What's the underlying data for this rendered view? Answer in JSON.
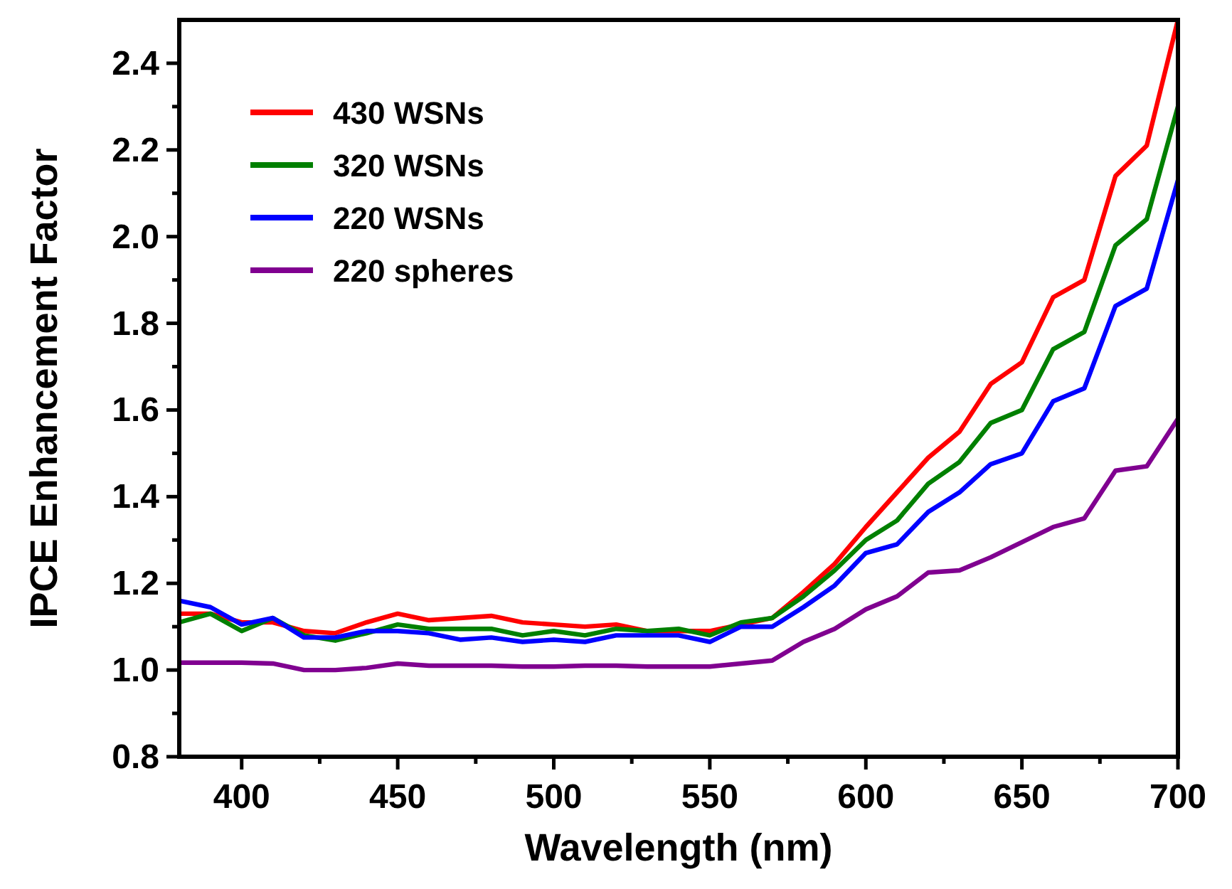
{
  "chart_data": {
    "type": "line",
    "xlabel": "Wavelength (nm)",
    "ylabel": "IPCE Enhancement Factor",
    "x": [
      380,
      390,
      400,
      410,
      420,
      430,
      440,
      450,
      460,
      470,
      480,
      490,
      500,
      510,
      520,
      530,
      540,
      550,
      560,
      570,
      580,
      590,
      600,
      610,
      620,
      630,
      640,
      650,
      660,
      670,
      680,
      690,
      700
    ],
    "series": [
      {
        "name": "430 WSNs",
        "color": "#ff0000",
        "values": [
          1.13,
          1.13,
          1.11,
          1.11,
          1.09,
          1.085,
          1.11,
          1.13,
          1.115,
          1.12,
          1.125,
          1.11,
          1.105,
          1.1,
          1.105,
          1.09,
          1.09,
          1.09,
          1.105,
          1.12,
          1.18,
          1.245,
          1.33,
          1.41,
          1.49,
          1.55,
          1.66,
          1.71,
          1.86,
          1.9,
          2.14,
          2.21,
          2.5
        ]
      },
      {
        "name": "320 WSNs",
        "color": "#008000",
        "values": [
          1.11,
          1.13,
          1.09,
          1.12,
          1.08,
          1.068,
          1.085,
          1.105,
          1.095,
          1.095,
          1.095,
          1.08,
          1.09,
          1.08,
          1.095,
          1.09,
          1.095,
          1.08,
          1.11,
          1.12,
          1.17,
          1.23,
          1.3,
          1.345,
          1.43,
          1.48,
          1.57,
          1.6,
          1.74,
          1.78,
          1.98,
          2.04,
          2.3
        ]
      },
      {
        "name": "220 WSNs",
        "color": "#0000ff",
        "values": [
          1.16,
          1.145,
          1.105,
          1.12,
          1.075,
          1.075,
          1.09,
          1.09,
          1.085,
          1.07,
          1.075,
          1.065,
          1.07,
          1.065,
          1.08,
          1.08,
          1.08,
          1.065,
          1.1,
          1.1,
          1.145,
          1.195,
          1.27,
          1.29,
          1.365,
          1.41,
          1.475,
          1.5,
          1.62,
          1.65,
          1.84,
          1.88,
          2.13
        ]
      },
      {
        "name": "220 spheres",
        "color": "#800090",
        "values": [
          1.017,
          1.017,
          1.017,
          1.015,
          1.0,
          1.0,
          1.005,
          1.015,
          1.01,
          1.01,
          1.01,
          1.008,
          1.008,
          1.01,
          1.01,
          1.008,
          1.008,
          1.008,
          1.015,
          1.022,
          1.065,
          1.095,
          1.14,
          1.17,
          1.225,
          1.23,
          1.26,
          1.295,
          1.33,
          1.35,
          1.46,
          1.47,
          1.58
        ]
      }
    ],
    "xlim": [
      380,
      700
    ],
    "ylim": [
      0.8,
      2.5
    ],
    "xticks": [
      400,
      {
        "value": 425,
        "label": null
      },
      450,
      {
        "value": 475,
        "label": null
      },
      500,
      {
        "value": 525,
        "label": null
      },
      550,
      {
        "value": 575,
        "label": null
      },
      600,
      {
        "value": 625,
        "label": null
      },
      650,
      {
        "value": 675,
        "label": null
      },
      700
    ],
    "yticks": [
      {
        "value": 0.8,
        "label": "0.8"
      },
      {
        "value": 0.9,
        "label": null
      },
      {
        "value": 1.0,
        "label": "1.0"
      },
      {
        "value": 1.1,
        "label": null
      },
      {
        "value": 1.2,
        "label": "1.2"
      },
      {
        "value": 1.3,
        "label": null
      },
      {
        "value": 1.4,
        "label": "1.4"
      },
      {
        "value": 1.5,
        "label": null
      },
      {
        "value": 1.6,
        "label": "1.6"
      },
      {
        "value": 1.7,
        "label": null
      },
      {
        "value": 1.8,
        "label": "1.8"
      },
      {
        "value": 1.9,
        "label": null
      },
      {
        "value": 2.0,
        "label": "2.0"
      },
      {
        "value": 2.1,
        "label": null
      },
      {
        "value": 2.2,
        "label": "2.2"
      },
      {
        "value": 2.3,
        "label": null
      },
      {
        "value": 2.4,
        "label": "2.4"
      }
    ],
    "legend": "top left",
    "grid": false,
    "marker": "none",
    "line_style": "solid"
  }
}
